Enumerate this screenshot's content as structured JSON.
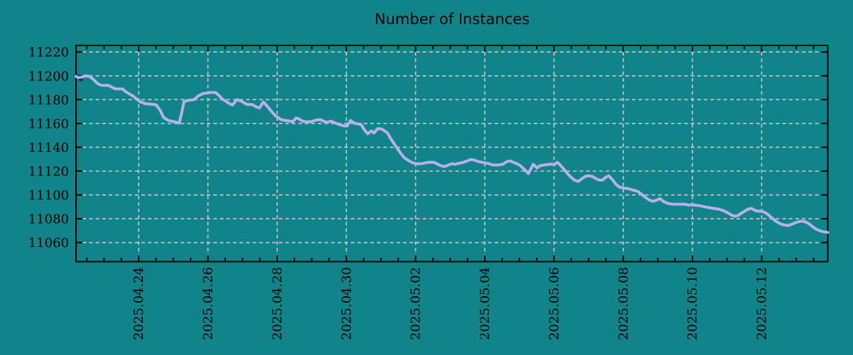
{
  "chart_data": {
    "type": "line",
    "title": "Number of Instances",
    "legend": "none",
    "grid": true,
    "colors": {
      "background": "#118489",
      "grid": "#cccccc",
      "axis": "#000000",
      "text": "#000000",
      "line": "#b7b0ec",
      "start_artifact": "#232861"
    },
    "x_axis": {
      "tick_labels": [
        "2025.04.24",
        "2025.04.26",
        "2025.04.28",
        "2025.04.30",
        "2025.05.02",
        "2025.05.04",
        "2025.05.06",
        "2025.05.08",
        "2025.05.10",
        "2025.05.12"
      ],
      "tick_days": [
        2,
        4,
        6,
        8,
        10,
        12,
        14,
        16,
        18,
        20
      ],
      "minor_tick_step_days": 0.5,
      "range_days": [
        0.19,
        21.91
      ]
    },
    "y_axis": {
      "tick_values": [
        11060,
        11080,
        11100,
        11120,
        11140,
        11160,
        11180,
        11200,
        11220
      ],
      "range": [
        11044,
        11225.5
      ]
    },
    "start_artifact_points": [
      [
        0.21,
        11199.6
      ],
      [
        0.33,
        11197.3
      ]
    ],
    "series": [
      {
        "name": "instances",
        "color": "#b7b0ec",
        "points": [
          [
            0.19,
            11199.5
          ],
          [
            0.25,
            11198.5
          ],
          [
            0.36,
            11199
          ],
          [
            0.46,
            11200
          ],
          [
            0.58,
            11199.5
          ],
          [
            0.71,
            11196.5
          ],
          [
            0.81,
            11193.5
          ],
          [
            0.93,
            11192
          ],
          [
            1.12,
            11192
          ],
          [
            1.22,
            11190.5
          ],
          [
            1.32,
            11189
          ],
          [
            1.53,
            11189
          ],
          [
            1.63,
            11186.5
          ],
          [
            1.84,
            11183
          ],
          [
            1.96,
            11180
          ],
          [
            2.06,
            11178
          ],
          [
            2.21,
            11176.5
          ],
          [
            2.41,
            11176
          ],
          [
            2.51,
            11175.5
          ],
          [
            2.62,
            11171
          ],
          [
            2.72,
            11165
          ],
          [
            2.86,
            11162.5
          ],
          [
            3.03,
            11161.5
          ],
          [
            3.17,
            11160.3
          ],
          [
            3.25,
            11170
          ],
          [
            3.31,
            11178.5
          ],
          [
            3.44,
            11179.5
          ],
          [
            3.6,
            11180
          ],
          [
            3.71,
            11183
          ],
          [
            3.85,
            11185
          ],
          [
            4.05,
            11186
          ],
          [
            4.22,
            11186
          ],
          [
            4.32,
            11183.5
          ],
          [
            4.42,
            11180.5
          ],
          [
            4.57,
            11177.5
          ],
          [
            4.71,
            11175.5
          ],
          [
            4.84,
            11180
          ],
          [
            4.98,
            11178.5
          ],
          [
            5.12,
            11176
          ],
          [
            5.29,
            11175.8
          ],
          [
            5.39,
            11174
          ],
          [
            5.49,
            11173
          ],
          [
            5.6,
            11178
          ],
          [
            5.7,
            11175
          ],
          [
            5.84,
            11170
          ],
          [
            5.95,
            11166.5
          ],
          [
            6.03,
            11165
          ],
          [
            6.11,
            11163.3
          ],
          [
            6.21,
            11162.7
          ],
          [
            6.36,
            11162
          ],
          [
            6.46,
            11161.5
          ],
          [
            6.54,
            11164.5
          ],
          [
            6.62,
            11164
          ],
          [
            6.73,
            11162
          ],
          [
            6.83,
            11161.4
          ],
          [
            6.97,
            11161.4
          ],
          [
            7.1,
            11162.7
          ],
          [
            7.24,
            11163.3
          ],
          [
            7.34,
            11162
          ],
          [
            7.45,
            11160.9
          ],
          [
            7.55,
            11162
          ],
          [
            7.69,
            11160.3
          ],
          [
            7.81,
            11159
          ],
          [
            7.92,
            11158
          ],
          [
            8.02,
            11157.9
          ],
          [
            8.12,
            11162.5
          ],
          [
            8.23,
            11160.3
          ],
          [
            8.33,
            11159.7
          ],
          [
            8.43,
            11159
          ],
          [
            8.53,
            11154.3
          ],
          [
            8.62,
            11151.3
          ],
          [
            8.72,
            11153.7
          ],
          [
            8.8,
            11152
          ],
          [
            8.9,
            11155.5
          ],
          [
            9.01,
            11155.5
          ],
          [
            9.11,
            11153.7
          ],
          [
            9.19,
            11152
          ],
          [
            9.27,
            11147.8
          ],
          [
            9.38,
            11143
          ],
          [
            9.48,
            11138.8
          ],
          [
            9.58,
            11134.6
          ],
          [
            9.68,
            11131
          ],
          [
            9.81,
            11128.6
          ],
          [
            9.93,
            11126.8
          ],
          [
            10.03,
            11126.2
          ],
          [
            10.18,
            11126.2
          ],
          [
            10.36,
            11127.4
          ],
          [
            10.53,
            11127.4
          ],
          [
            10.73,
            11124.5
          ],
          [
            10.84,
            11123.9
          ],
          [
            10.94,
            11125
          ],
          [
            11.04,
            11126.2
          ],
          [
            11.14,
            11125.7
          ],
          [
            11.29,
            11126.8
          ],
          [
            11.39,
            11127.4
          ],
          [
            11.49,
            11128.6
          ],
          [
            11.6,
            11129.8
          ],
          [
            11.7,
            11129.2
          ],
          [
            11.82,
            11128
          ],
          [
            11.92,
            11127.4
          ],
          [
            12.03,
            11126.8
          ],
          [
            12.13,
            11126.2
          ],
          [
            12.23,
            11125.1
          ],
          [
            12.38,
            11125.1
          ],
          [
            12.52,
            11125.7
          ],
          [
            12.64,
            11128
          ],
          [
            12.73,
            11128.6
          ],
          [
            12.83,
            11127.4
          ],
          [
            12.93,
            11126.2
          ],
          [
            13.03,
            11124.5
          ],
          [
            13.14,
            11121.5
          ],
          [
            13.26,
            11118
          ],
          [
            13.4,
            11125.7
          ],
          [
            13.51,
            11122.7
          ],
          [
            13.59,
            11124.5
          ],
          [
            13.71,
            11125.1
          ],
          [
            13.86,
            11125.7
          ],
          [
            14.02,
            11125.7
          ],
          [
            14.1,
            11127.4
          ],
          [
            14.18,
            11125.1
          ],
          [
            14.29,
            11121.5
          ],
          [
            14.39,
            11117.9
          ],
          [
            14.49,
            11114.9
          ],
          [
            14.59,
            11112.5
          ],
          [
            14.7,
            11111.3
          ],
          [
            14.78,
            11113.1
          ],
          [
            14.9,
            11115.5
          ],
          [
            14.98,
            11116.1
          ],
          [
            15.11,
            11115.5
          ],
          [
            15.21,
            11113.7
          ],
          [
            15.31,
            11112.5
          ],
          [
            15.4,
            11112.5
          ],
          [
            15.5,
            11114.9
          ],
          [
            15.58,
            11116.1
          ],
          [
            15.68,
            11113.1
          ],
          [
            15.79,
            11108.9
          ],
          [
            15.89,
            11106.5
          ],
          [
            16.01,
            11105.9
          ],
          [
            16.14,
            11105.3
          ],
          [
            16.28,
            11104.1
          ],
          [
            16.42,
            11103
          ],
          [
            16.49,
            11101.5
          ],
          [
            16.63,
            11098.2
          ],
          [
            16.75,
            11095.8
          ],
          [
            16.86,
            11094.6
          ],
          [
            16.98,
            11095.8
          ],
          [
            17.06,
            11097
          ],
          [
            17.16,
            11094.6
          ],
          [
            17.29,
            11092.8
          ],
          [
            17.45,
            11092.2
          ],
          [
            17.61,
            11092.2
          ],
          [
            17.76,
            11092.2
          ],
          [
            17.88,
            11091.6
          ],
          [
            18.01,
            11091.6
          ],
          [
            18.19,
            11091
          ],
          [
            18.4,
            11089.8
          ],
          [
            18.6,
            11088.7
          ],
          [
            18.75,
            11088.1
          ],
          [
            18.89,
            11086.9
          ],
          [
            19.01,
            11085.1
          ],
          [
            19.12,
            11083.3
          ],
          [
            19.22,
            11082.1
          ],
          [
            19.32,
            11082.7
          ],
          [
            19.4,
            11084.5
          ],
          [
            19.51,
            11086.3
          ],
          [
            19.61,
            11088.1
          ],
          [
            19.71,
            11088.7
          ],
          [
            19.81,
            11086.9
          ],
          [
            19.92,
            11086.3
          ],
          [
            20,
            11086.3
          ],
          [
            20.1,
            11085.1
          ],
          [
            20.2,
            11083.3
          ],
          [
            20.31,
            11080.3
          ],
          [
            20.41,
            11077.9
          ],
          [
            20.51,
            11076.1
          ],
          [
            20.63,
            11074.9
          ],
          [
            20.76,
            11074.3
          ],
          [
            20.88,
            11075.5
          ],
          [
            20.98,
            11076.7
          ],
          [
            21.11,
            11077.9
          ],
          [
            21.21,
            11077.9
          ],
          [
            21.31,
            11076.7
          ],
          [
            21.41,
            11074.9
          ],
          [
            21.51,
            11072.5
          ],
          [
            21.62,
            11070.7
          ],
          [
            21.72,
            11069.5
          ],
          [
            21.82,
            11068.9
          ],
          [
            21.91,
            11068.5
          ]
        ]
      }
    ]
  }
}
